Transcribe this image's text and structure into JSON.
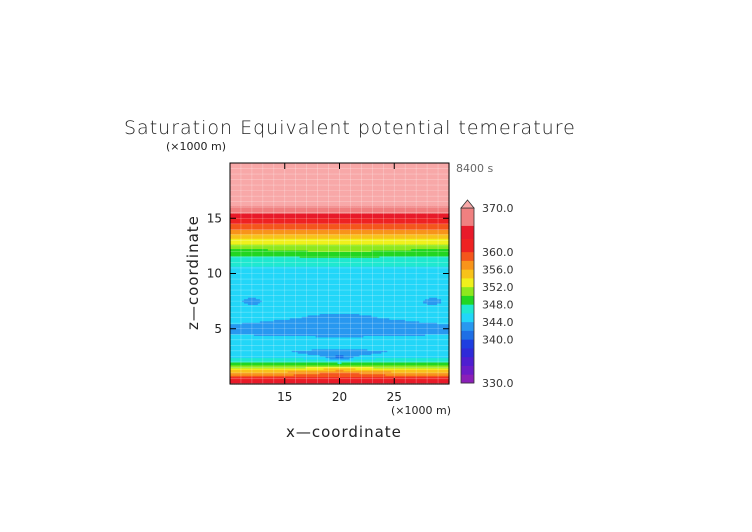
{
  "chart_data": {
    "type": "heatmap",
    "title": "Saturation Equivalent potential temerature",
    "time_label": "8400 s",
    "xlabel": "x—coordinate",
    "ylabel": "z—coordinate",
    "x_unit": "(×1000 m)",
    "y_unit": "(×1000 m)",
    "xlim": [
      10,
      30
    ],
    "ylim": [
      0,
      20
    ],
    "x_ticks": [
      15,
      20,
      25
    ],
    "y_ticks": [
      5,
      10,
      15
    ],
    "grid": true,
    "colorbar": {
      "min": 330,
      "max": 370,
      "tick_values": [
        330.0,
        340.0,
        344.0,
        348.0,
        352.0,
        356.0,
        360.0,
        370.0
      ],
      "tick_labels": [
        "330.0",
        "340.0",
        "344.0",
        "348.0",
        "352.0",
        "356.0",
        "360.0",
        "370.0"
      ],
      "overflow_arrow": "top",
      "bands": [
        {
          "lo": 330,
          "hi": 332,
          "color": "#8a1fb8"
        },
        {
          "lo": 332,
          "hi": 334,
          "color": "#6a1cc8"
        },
        {
          "lo": 334,
          "hi": 336,
          "color": "#4e1ed0"
        },
        {
          "lo": 336,
          "hi": 338,
          "color": "#2e2ad8"
        },
        {
          "lo": 338,
          "hi": 340,
          "color": "#1e3ee0"
        },
        {
          "lo": 340,
          "hi": 342,
          "color": "#1e6fe6"
        },
        {
          "lo": 342,
          "hi": 344,
          "color": "#2898f0"
        },
        {
          "lo": 344,
          "hi": 346,
          "color": "#22d6f8"
        },
        {
          "lo": 346,
          "hi": 348,
          "color": "#1fe8d0"
        },
        {
          "lo": 348,
          "hi": 350,
          "color": "#22d622"
        },
        {
          "lo": 350,
          "hi": 352,
          "color": "#8ee81e"
        },
        {
          "lo": 352,
          "hi": 354,
          "color": "#f0f01c"
        },
        {
          "lo": 354,
          "hi": 356,
          "color": "#f8c21a"
        },
        {
          "lo": 356,
          "hi": 358,
          "color": "#f8941a"
        },
        {
          "lo": 358,
          "hi": 360,
          "color": "#f4561c"
        },
        {
          "lo": 360,
          "hi": 363,
          "color": "#ee2222"
        },
        {
          "lo": 363,
          "hi": 366,
          "color": "#e81a2a"
        },
        {
          "lo": 366,
          "hi": 370,
          "color": "#f08080"
        },
        {
          "lo": 370,
          "hi": 380,
          "color": "#f8a8a8"
        }
      ]
    },
    "z_profile": [
      {
        "z": 0.0,
        "theta": 369
      },
      {
        "z": 0.4,
        "theta": 362
      },
      {
        "z": 0.8,
        "theta": 358
      },
      {
        "z": 1.2,
        "theta": 355
      },
      {
        "z": 1.6,
        "theta": 351
      },
      {
        "z": 2.0,
        "theta": 348
      },
      {
        "z": 2.5,
        "theta": 345.5
      },
      {
        "z": 3.0,
        "theta": 344.5
      },
      {
        "z": 3.5,
        "theta": 345.2
      },
      {
        "z": 4.0,
        "theta": 344.6
      },
      {
        "z": 5.0,
        "theta": 343.5
      },
      {
        "z": 6.0,
        "theta": 344.8
      },
      {
        "z": 7.0,
        "theta": 344.5
      },
      {
        "z": 8.0,
        "theta": 345.0
      },
      {
        "z": 9.0,
        "theta": 345.0
      },
      {
        "z": 10.0,
        "theta": 345.0
      },
      {
        "z": 11.0,
        "theta": 346.5
      },
      {
        "z": 12.0,
        "theta": 349.0
      },
      {
        "z": 12.6,
        "theta": 351.5
      },
      {
        "z": 13.2,
        "theta": 354.0
      },
      {
        "z": 13.8,
        "theta": 357.0
      },
      {
        "z": 14.4,
        "theta": 359.5
      },
      {
        "z": 15.0,
        "theta": 362.0
      },
      {
        "z": 15.6,
        "theta": 366.5
      },
      {
        "z": 16.2,
        "theta": 370.5
      },
      {
        "z": 20.0,
        "theta": 372.0
      }
    ],
    "anomalies": [
      {
        "x": 20.0,
        "z": 2.8,
        "sx": 4.5,
        "sz": 0.45,
        "amp": -1.6
      },
      {
        "x": 20.0,
        "z": 2.4,
        "sx": 1.2,
        "sz": 0.35,
        "amp": -3.0
      },
      {
        "x": 20.0,
        "z": 5.6,
        "sx": 6.5,
        "sz": 1.0,
        "amp": -1.3
      },
      {
        "x": 12.0,
        "z": 7.6,
        "sx": 1.3,
        "sz": 0.45,
        "amp": -1.2
      },
      {
        "x": 28.5,
        "z": 7.6,
        "sx": 1.3,
        "sz": 0.45,
        "amp": -1.2
      },
      {
        "x": 20.0,
        "z": 12.1,
        "sx": 5.0,
        "sz": 0.5,
        "amp": 1.0
      },
      {
        "x": 20.0,
        "z": 1.1,
        "sx": 4.0,
        "sz": 0.4,
        "amp": 2.0
      }
    ]
  }
}
